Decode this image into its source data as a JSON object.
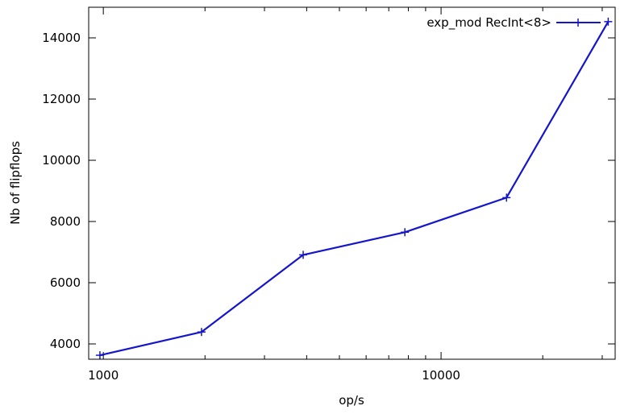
{
  "chart_data": {
    "type": "line",
    "title": "",
    "xlabel": "op/s",
    "ylabel": "Nb of flipflops",
    "x_scale": "log",
    "xlim": [
      905,
      32768
    ],
    "ylim": [
      3500,
      15000
    ],
    "x_tick_labels": [
      {
        "value": 1000,
        "label": "1000"
      },
      {
        "value": 10000,
        "label": "10000"
      }
    ],
    "y_tick_labels": [
      {
        "value": 4000,
        "label": "4000"
      },
      {
        "value": 6000,
        "label": "6000"
      },
      {
        "value": 8000,
        "label": "8000"
      },
      {
        "value": 10000,
        "label": "10000"
      },
      {
        "value": 12000,
        "label": "12000"
      },
      {
        "value": 14000,
        "label": "14000"
      }
    ],
    "grid": false,
    "legend_position": "top-right",
    "series": [
      {
        "name": "exp_mod RecInt<8>",
        "color": "#1515cc",
        "marker": "plus",
        "points": [
          {
            "x": 977,
            "y": 3630
          },
          {
            "x": 1953,
            "y": 4390
          },
          {
            "x": 3906,
            "y": 6910
          },
          {
            "x": 7813,
            "y": 7650
          },
          {
            "x": 15625,
            "y": 8780
          },
          {
            "x": 31250,
            "y": 14530
          }
        ]
      }
    ]
  }
}
